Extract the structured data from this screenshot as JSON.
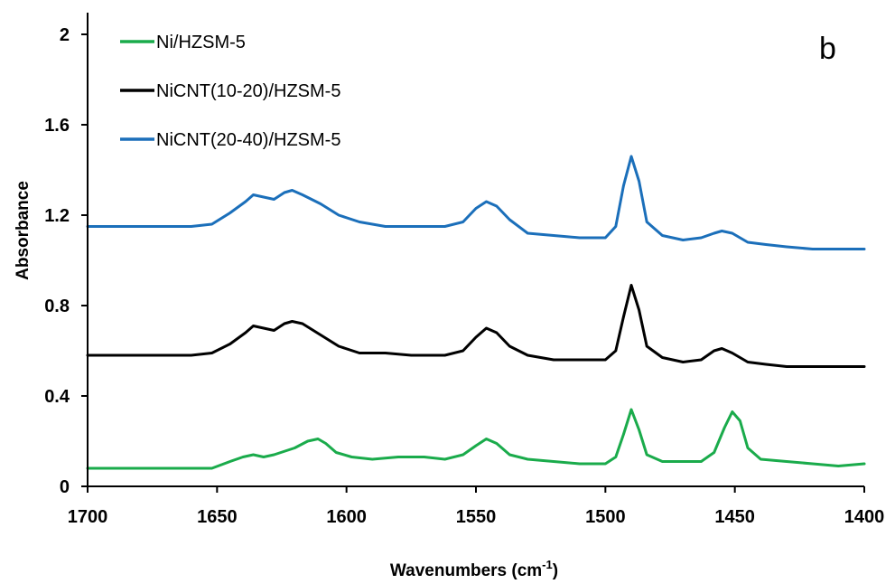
{
  "chart_data": {
    "type": "line",
    "panel_label": "b",
    "xlabel": "Wavenumbers (cm",
    "xlabel_sup": "-1",
    "xlabel_end": ")",
    "ylabel": "Absorbance",
    "xlim": [
      1700,
      1400
    ],
    "x_reversed": true,
    "ylim": [
      0,
      2
    ],
    "x_ticks": [
      1700,
      1650,
      1600,
      1550,
      1500,
      1450,
      1400
    ],
    "x_tick_labels": [
      "1700",
      "1650",
      "1600",
      "1550",
      "1500",
      "1450",
      "1400"
    ],
    "y_ticks": [
      0,
      0.4,
      0.8,
      1.2,
      1.6,
      2
    ],
    "y_tick_labels": [
      "0",
      "0.4",
      "0.8",
      "1.2",
      "1.6",
      "2"
    ],
    "grid": false,
    "legend_position": "top-left",
    "series": [
      {
        "name": "Ni/HZSM-5",
        "color": "#1aab4b",
        "points": [
          [
            1700,
            0.08
          ],
          [
            1680,
            0.08
          ],
          [
            1660,
            0.08
          ],
          [
            1652,
            0.08
          ],
          [
            1645,
            0.11
          ],
          [
            1640,
            0.13
          ],
          [
            1636,
            0.14
          ],
          [
            1632,
            0.13
          ],
          [
            1628,
            0.14
          ],
          [
            1620,
            0.17
          ],
          [
            1615,
            0.2
          ],
          [
            1611,
            0.21
          ],
          [
            1608,
            0.19
          ],
          [
            1604,
            0.15
          ],
          [
            1598,
            0.13
          ],
          [
            1590,
            0.12
          ],
          [
            1580,
            0.13
          ],
          [
            1570,
            0.13
          ],
          [
            1562,
            0.12
          ],
          [
            1555,
            0.14
          ],
          [
            1550,
            0.18
          ],
          [
            1546,
            0.21
          ],
          [
            1542,
            0.19
          ],
          [
            1537,
            0.14
          ],
          [
            1530,
            0.12
          ],
          [
            1520,
            0.11
          ],
          [
            1510,
            0.1
          ],
          [
            1500,
            0.1
          ],
          [
            1496,
            0.13
          ],
          [
            1493,
            0.23
          ],
          [
            1490,
            0.34
          ],
          [
            1487,
            0.25
          ],
          [
            1484,
            0.14
          ],
          [
            1478,
            0.11
          ],
          [
            1470,
            0.11
          ],
          [
            1463,
            0.11
          ],
          [
            1458,
            0.15
          ],
          [
            1454,
            0.26
          ],
          [
            1451,
            0.33
          ],
          [
            1448,
            0.29
          ],
          [
            1445,
            0.17
          ],
          [
            1440,
            0.12
          ],
          [
            1430,
            0.11
          ],
          [
            1420,
            0.1
          ],
          [
            1410,
            0.09
          ],
          [
            1400,
            0.1
          ]
        ]
      },
      {
        "name": "NiCNT(10-20)/HZSM-5",
        "color": "#000000",
        "points": [
          [
            1700,
            0.58
          ],
          [
            1680,
            0.58
          ],
          [
            1660,
            0.58
          ],
          [
            1652,
            0.59
          ],
          [
            1645,
            0.63
          ],
          [
            1639,
            0.68
          ],
          [
            1636,
            0.71
          ],
          [
            1632,
            0.7
          ],
          [
            1628,
            0.69
          ],
          [
            1624,
            0.72
          ],
          [
            1621,
            0.73
          ],
          [
            1617,
            0.72
          ],
          [
            1610,
            0.67
          ],
          [
            1603,
            0.62
          ],
          [
            1595,
            0.59
          ],
          [
            1585,
            0.59
          ],
          [
            1575,
            0.58
          ],
          [
            1562,
            0.58
          ],
          [
            1555,
            0.6
          ],
          [
            1550,
            0.66
          ],
          [
            1546,
            0.7
          ],
          [
            1542,
            0.68
          ],
          [
            1537,
            0.62
          ],
          [
            1530,
            0.58
          ],
          [
            1520,
            0.56
          ],
          [
            1510,
            0.56
          ],
          [
            1500,
            0.56
          ],
          [
            1496,
            0.6
          ],
          [
            1493,
            0.75
          ],
          [
            1490,
            0.89
          ],
          [
            1487,
            0.78
          ],
          [
            1484,
            0.62
          ],
          [
            1478,
            0.57
          ],
          [
            1470,
            0.55
          ],
          [
            1463,
            0.56
          ],
          [
            1458,
            0.6
          ],
          [
            1455,
            0.61
          ],
          [
            1451,
            0.59
          ],
          [
            1445,
            0.55
          ],
          [
            1438,
            0.54
          ],
          [
            1430,
            0.53
          ],
          [
            1420,
            0.53
          ],
          [
            1410,
            0.53
          ],
          [
            1400,
            0.53
          ]
        ]
      },
      {
        "name": "NiCNT(20-40)/HZSM-5",
        "color": "#1b6fba",
        "points": [
          [
            1700,
            1.15
          ],
          [
            1680,
            1.15
          ],
          [
            1660,
            1.15
          ],
          [
            1652,
            1.16
          ],
          [
            1645,
            1.21
          ],
          [
            1639,
            1.26
          ],
          [
            1636,
            1.29
          ],
          [
            1632,
            1.28
          ],
          [
            1628,
            1.27
          ],
          [
            1624,
            1.3
          ],
          [
            1621,
            1.31
          ],
          [
            1617,
            1.29
          ],
          [
            1610,
            1.25
          ],
          [
            1603,
            1.2
          ],
          [
            1595,
            1.17
          ],
          [
            1585,
            1.15
          ],
          [
            1575,
            1.15
          ],
          [
            1562,
            1.15
          ],
          [
            1555,
            1.17
          ],
          [
            1550,
            1.23
          ],
          [
            1546,
            1.26
          ],
          [
            1542,
            1.24
          ],
          [
            1537,
            1.18
          ],
          [
            1530,
            1.12
          ],
          [
            1520,
            1.11
          ],
          [
            1510,
            1.1
          ],
          [
            1500,
            1.1
          ],
          [
            1496,
            1.15
          ],
          [
            1493,
            1.33
          ],
          [
            1490,
            1.46
          ],
          [
            1487,
            1.35
          ],
          [
            1484,
            1.17
          ],
          [
            1478,
            1.11
          ],
          [
            1470,
            1.09
          ],
          [
            1463,
            1.1
          ],
          [
            1458,
            1.12
          ],
          [
            1455,
            1.13
          ],
          [
            1451,
            1.12
          ],
          [
            1445,
            1.08
          ],
          [
            1438,
            1.07
          ],
          [
            1430,
            1.06
          ],
          [
            1420,
            1.05
          ],
          [
            1410,
            1.05
          ],
          [
            1400,
            1.05
          ]
        ]
      }
    ]
  }
}
